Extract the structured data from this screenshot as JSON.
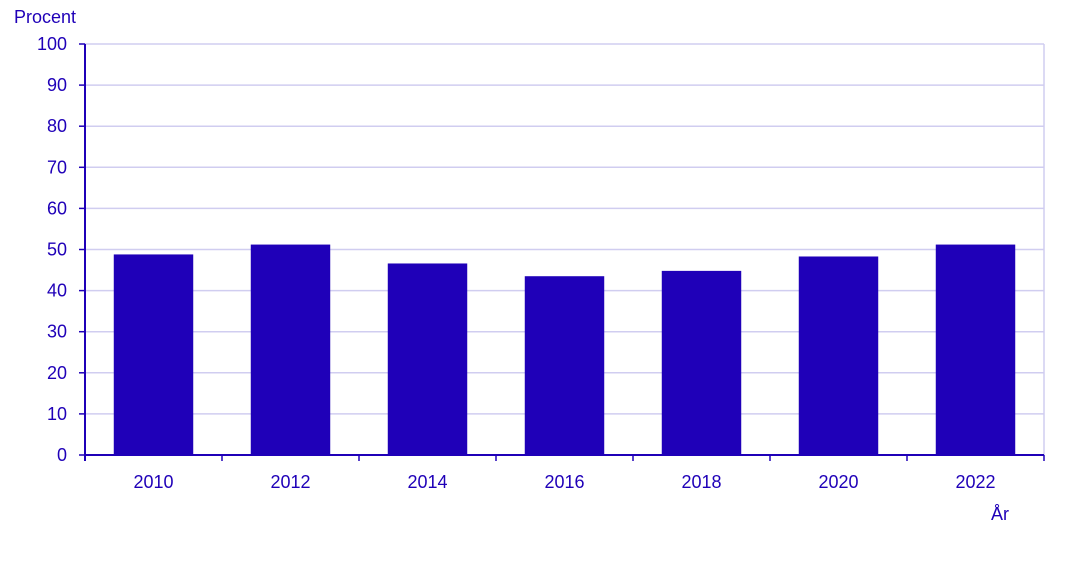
{
  "chart_data": {
    "type": "bar",
    "ylabel": "Procent",
    "xlabel": "År",
    "categories": [
      "2010",
      "2012",
      "2014",
      "2016",
      "2018",
      "2020",
      "2022"
    ],
    "values": [
      48.8,
      51.2,
      46.6,
      43.5,
      44.8,
      48.3,
      51.2
    ],
    "ylim": [
      0,
      100
    ],
    "yticks": [
      "0",
      "10",
      "20",
      "30",
      "40",
      "50",
      "60",
      "70",
      "80",
      "90",
      "100"
    ],
    "grid": true,
    "colors": {
      "bar": "#1f00b8",
      "axis": "#1f00b8",
      "text": "#1f00b8",
      "grid": "#d0cdf0",
      "frame": "#d0cdf0"
    }
  }
}
